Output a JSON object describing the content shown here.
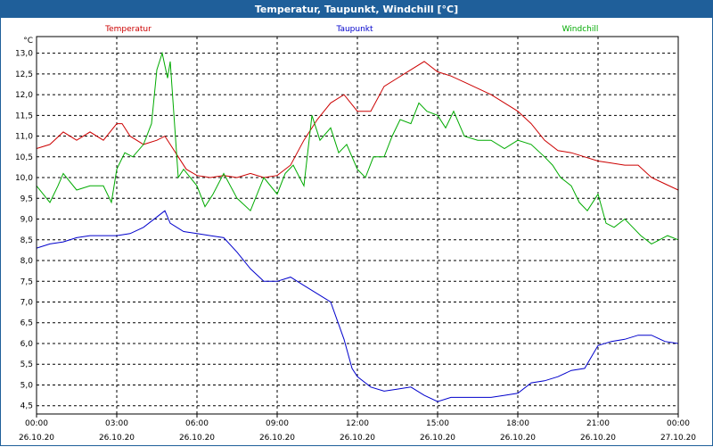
{
  "window": {
    "title": "Temperatur, Taupunkt, Windchill [°C]"
  },
  "chart_data": {
    "type": "line",
    "title": "Temperatur, Taupunkt, Windchill [°C]",
    "ylabel": "°C",
    "ylim": [
      4.3,
      13.4
    ],
    "y_ticks": [
      "4,5",
      "5,0",
      "5,5",
      "6,0",
      "6,5",
      "7,0",
      "7,5",
      "8,0",
      "8,5",
      "9,0",
      "9,5",
      "10,0",
      "10,5",
      "11,0",
      "11,5",
      "12,0",
      "12,5",
      "13,0"
    ],
    "y_tick_values": [
      4.5,
      5.0,
      5.5,
      6.0,
      6.5,
      7.0,
      7.5,
      8.0,
      8.5,
      9.0,
      9.5,
      10.0,
      10.5,
      11.0,
      11.5,
      12.0,
      12.5,
      13.0
    ],
    "x_ticks": [
      {
        "time": "00:00",
        "date": "26.10.20",
        "h": 0
      },
      {
        "time": "03:00",
        "date": "26.10.20",
        "h": 3
      },
      {
        "time": "06:00",
        "date": "26.10.20",
        "h": 6
      },
      {
        "time": "09:00",
        "date": "26.10.20",
        "h": 9
      },
      {
        "time": "12:00",
        "date": "26.10.20",
        "h": 12
      },
      {
        "time": "15:00",
        "date": "26.10.20",
        "h": 15
      },
      {
        "time": "18:00",
        "date": "26.10.20",
        "h": 18
      },
      {
        "time": "21:00",
        "date": "26.10.20",
        "h": 21
      },
      {
        "time": "00:00",
        "date": "27.10.20",
        "h": 24
      }
    ],
    "grid": true,
    "legend": "top",
    "series": [
      {
        "name": "Temperatur",
        "color": "#cc0000",
        "x": [
          0,
          0.5,
          1,
          1.5,
          2,
          2.5,
          3,
          3.2,
          3.5,
          4,
          4.5,
          4.8,
          5,
          5.3,
          5.6,
          6,
          6.5,
          7,
          7.5,
          8,
          8.5,
          9,
          9.5,
          10,
          10.5,
          11,
          11.5,
          12,
          12.5,
          13,
          13.5,
          14,
          14.5,
          15,
          15.5,
          16,
          17,
          18,
          18.5,
          19,
          19.5,
          20,
          20.5,
          21,
          21.5,
          22,
          22.5,
          23,
          23.5,
          24
        ],
        "y": [
          10.7,
          10.8,
          11.1,
          10.9,
          11.1,
          10.9,
          11.3,
          11.3,
          11.0,
          10.8,
          10.9,
          11.0,
          10.8,
          10.5,
          10.2,
          10.05,
          10.0,
          10.05,
          10.0,
          10.1,
          10.0,
          10.05,
          10.3,
          10.9,
          11.4,
          11.8,
          12.0,
          11.6,
          11.6,
          12.2,
          12.4,
          12.6,
          12.8,
          12.55,
          12.45,
          12.3,
          12.0,
          11.6,
          11.3,
          10.9,
          10.65,
          10.6,
          10.5,
          10.4,
          10.35,
          10.3,
          10.3,
          10.0,
          9.85,
          9.7
        ]
      },
      {
        "name": "Taupunkt",
        "color": "#0000cc",
        "x": [
          0,
          0.5,
          1,
          1.5,
          2,
          2.5,
          3,
          3.5,
          4,
          4.5,
          4.8,
          5,
          5.5,
          6,
          6.5,
          7,
          7.5,
          8,
          8.5,
          9,
          9.5,
          10,
          10.5,
          11,
          11.5,
          11.8,
          12,
          12.5,
          13,
          13.5,
          14,
          14.5,
          15,
          15.5,
          16,
          16.5,
          17,
          17.5,
          18,
          18.5,
          19,
          19.5,
          20,
          20.5,
          21,
          21.5,
          22,
          22.5,
          23,
          23.5,
          24
        ],
        "y": [
          8.3,
          8.4,
          8.45,
          8.55,
          8.6,
          8.6,
          8.6,
          8.65,
          8.8,
          9.05,
          9.2,
          8.9,
          8.7,
          8.65,
          8.6,
          8.55,
          8.2,
          7.8,
          7.5,
          7.5,
          7.6,
          7.4,
          7.2,
          7.0,
          6.1,
          5.4,
          5.2,
          4.95,
          4.85,
          4.9,
          4.95,
          4.75,
          4.6,
          4.7,
          4.7,
          4.7,
          4.7,
          4.75,
          4.8,
          5.05,
          5.1,
          5.2,
          5.35,
          5.4,
          5.95,
          6.05,
          6.1,
          6.2,
          6.2,
          6.05,
          6.0
        ]
      },
      {
        "name": "Windchill",
        "color": "#00aa00",
        "x": [
          0,
          0.5,
          0.8,
          1,
          1.5,
          2,
          2.5,
          2.8,
          3,
          3.3,
          3.6,
          4,
          4.3,
          4.5,
          4.7,
          4.9,
          5,
          5.3,
          5.5,
          6,
          6.3,
          6.6,
          7,
          7.5,
          8,
          8.5,
          9,
          9.3,
          9.6,
          10,
          10.3,
          10.6,
          11,
          11.3,
          11.6,
          12,
          12.3,
          12.6,
          13,
          13.3,
          13.6,
          14,
          14.3,
          14.6,
          15,
          15.3,
          15.6,
          16,
          16.5,
          17,
          17.5,
          18,
          18.5,
          19,
          19.3,
          19.6,
          20,
          20.3,
          20.6,
          21,
          21.3,
          21.6,
          22,
          22.3,
          22.6,
          23,
          23.3,
          23.6,
          24
        ],
        "y": [
          9.8,
          9.4,
          9.8,
          10.1,
          9.7,
          9.8,
          9.8,
          9.4,
          10.2,
          10.6,
          10.5,
          10.8,
          11.3,
          12.6,
          13.0,
          12.4,
          12.8,
          10.0,
          10.2,
          9.8,
          9.3,
          9.6,
          10.1,
          9.5,
          9.2,
          10.0,
          9.6,
          10.1,
          10.3,
          9.8,
          11.5,
          10.9,
          11.2,
          10.6,
          10.8,
          10.2,
          10.0,
          10.5,
          10.5,
          11.0,
          11.4,
          11.3,
          11.8,
          11.6,
          11.5,
          11.2,
          11.6,
          11.0,
          10.9,
          10.9,
          10.7,
          10.9,
          10.8,
          10.5,
          10.3,
          10.0,
          9.8,
          9.4,
          9.2,
          9.6,
          8.9,
          8.8,
          9.0,
          8.8,
          8.6,
          8.4,
          8.5,
          8.6,
          8.5
        ]
      }
    ]
  }
}
